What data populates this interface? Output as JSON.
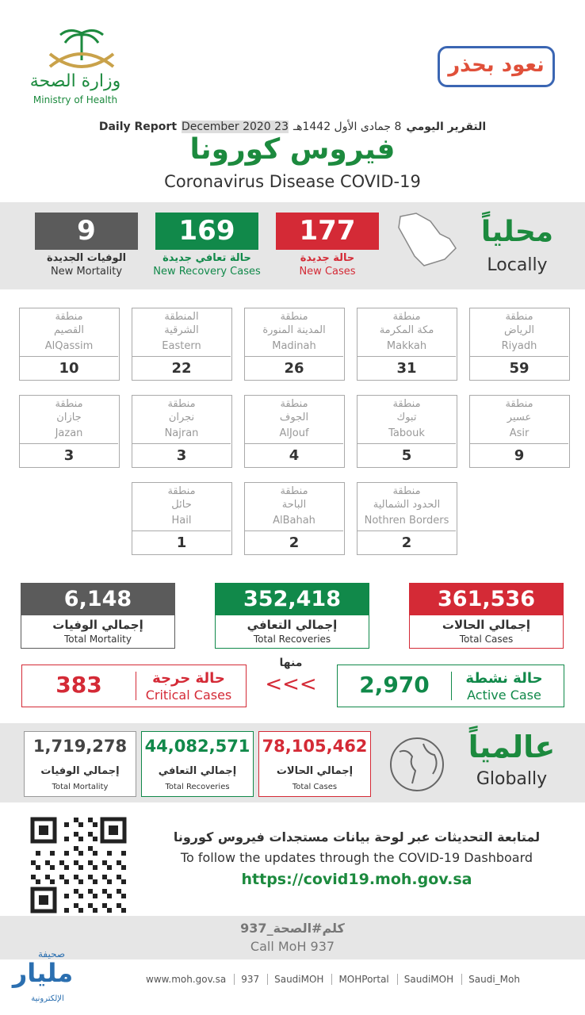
{
  "header": {
    "logo_ar": "وزارة الصحة",
    "logo_en": "Ministry of Health",
    "campaign": "نعود بحذر",
    "report_ar": "التقرير اليومي",
    "report_hijri": "8 جمادى الأول 1442هـ",
    "report_date": "23 December 2020",
    "report_en": "Daily Report",
    "title_ar": "فيروس كورونا",
    "title_en": "Coronavirus Disease COVID-19"
  },
  "local": {
    "label_ar": "محلياً",
    "label_en": "Locally",
    "stats": [
      {
        "value": "177",
        "label_ar": "حالة جديدة",
        "label_en": "New Cases"
      },
      {
        "value": "169",
        "label_ar": "حالة تعافي جديدة",
        "label_en": "New Recovery Cases"
      },
      {
        "value": "9",
        "label_ar": "الوفيات الجديدة",
        "label_en": "New Mortality"
      }
    ]
  },
  "regions": [
    {
      "prefix": "منطقة",
      "name_ar": "الرياض",
      "name_en": "Riyadh",
      "value": "59"
    },
    {
      "prefix": "منطقة",
      "name_ar": "مكة المكرمة",
      "name_en": "Makkah",
      "value": "31"
    },
    {
      "prefix": "منطقة",
      "name_ar": "المدينة المنورة",
      "name_en": "Madinah",
      "value": "26"
    },
    {
      "prefix": "المنطقة",
      "name_ar": "الشرقية",
      "name_en": "Eastern",
      "value": "22"
    },
    {
      "prefix": "منطقة",
      "name_ar": "القصيم",
      "name_en": "AlQassim",
      "value": "10"
    },
    {
      "prefix": "منطقة",
      "name_ar": "عسير",
      "name_en": "Asir",
      "value": "9"
    },
    {
      "prefix": "منطقة",
      "name_ar": "تبوك",
      "name_en": "Tabouk",
      "value": "5"
    },
    {
      "prefix": "منطقة",
      "name_ar": "الجوف",
      "name_en": "AlJouf",
      "value": "4"
    },
    {
      "prefix": "منطقة",
      "name_ar": "نجران",
      "name_en": "Najran",
      "value": "3"
    },
    {
      "prefix": "منطقة",
      "name_ar": "جازان",
      "name_en": "Jazan",
      "value": "3"
    },
    {
      "prefix": "منطقة",
      "name_ar": "الحدود الشمالية",
      "name_en": "Nothren Borders",
      "value": "2"
    },
    {
      "prefix": "منطقة",
      "name_ar": "الباحة",
      "name_en": "AlBahah",
      "value": "2"
    },
    {
      "prefix": "منطقة",
      "name_ar": "حائل",
      "name_en": "Hail",
      "value": "1"
    }
  ],
  "totals": [
    {
      "value": "361,536",
      "label_ar": "إجمالي الحالات",
      "label_en": "Total Cases"
    },
    {
      "value": "352,418",
      "label_ar": "إجمالي التعافي",
      "label_en": "Total Recoveries"
    },
    {
      "value": "6,148",
      "label_ar": "إجمالي الوفيات",
      "label_en": "Total Mortality"
    }
  ],
  "active": {
    "value": "2,970",
    "label_ar": "حالة نشطة",
    "label_en": "Active Case"
  },
  "of_which": "منها",
  "arrows": "<<<",
  "critical": {
    "value": "383",
    "label_ar": "حالة حرجة",
    "label_en": "Critical Cases"
  },
  "global": {
    "label_ar": "عالمياً",
    "label_en": "Globally",
    "stats": [
      {
        "value": "78,105,462",
        "label_ar": "إجمالي الحالات",
        "label_en": "Total Cases"
      },
      {
        "value": "44,082,571",
        "label_ar": "إجمالي التعافي",
        "label_en": "Total Recoveries"
      },
      {
        "value": "1,719,278",
        "label_ar": "إجمالي الوفيات",
        "label_en": "Total Mortality"
      }
    ]
  },
  "dashboard": {
    "text_ar": "لمتابعة التحديثات عبر لوحة بيانات مستجدات فيروس كورونا",
    "text_en": "To follow the updates through the COVID-19 Dashboard",
    "url": "https://covid19.moh.gov.sa"
  },
  "call": {
    "text_ar": "كلم#الصحة_937",
    "text_en": "Call MoH 937"
  },
  "footer": [
    "www.moh.gov.sa",
    "937",
    "SaudiMOH",
    "MOHPortal",
    "SaudiMOH",
    "Saudi_Moh"
  ],
  "watermark": {
    "top": "صحيفة",
    "main": "مليار",
    "bottom": "الإلكترونية"
  }
}
